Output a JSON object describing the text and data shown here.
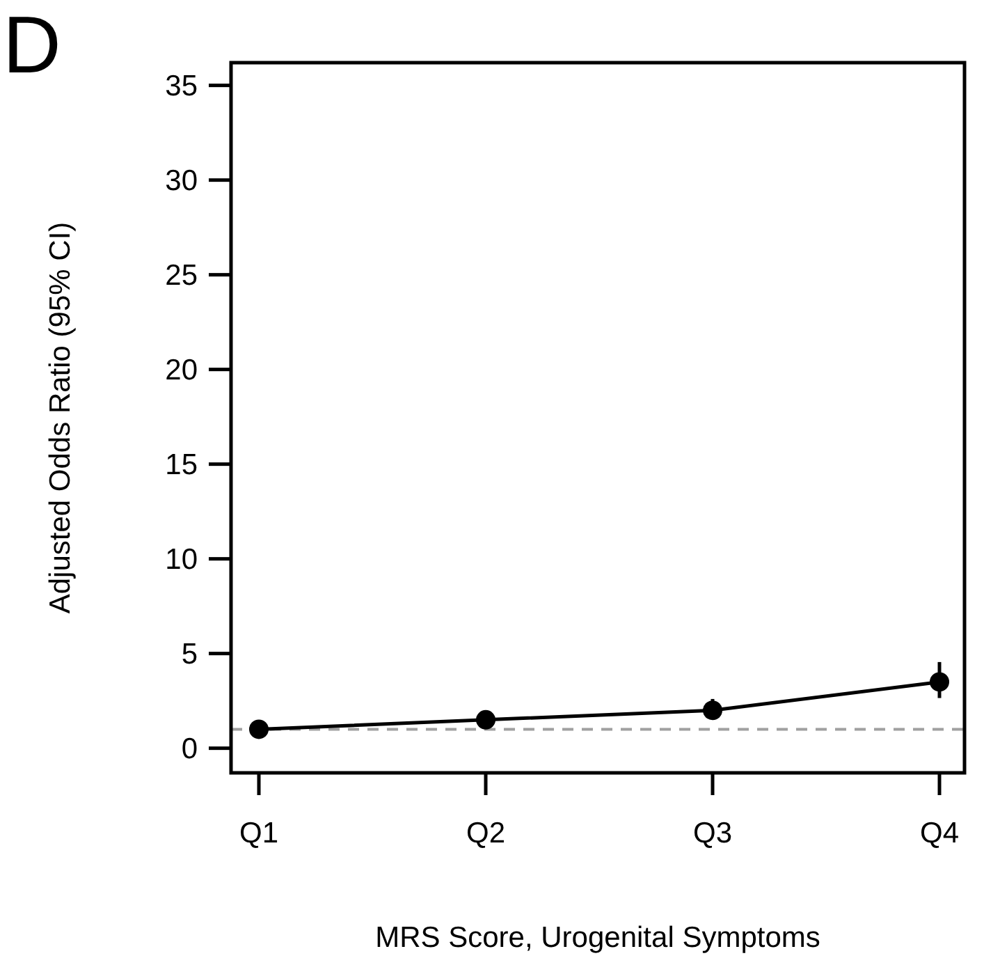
{
  "chart_data": {
    "type": "line",
    "xlabel": "MRS Score, Urogenital Symptoms",
    "ylabel": "Adjusted Odds Ratio (95% CI)",
    "annotations": [
      "D"
    ],
    "categories": [
      "Q1",
      "Q2",
      "Q3",
      "Q4"
    ],
    "series": [
      {
        "color": "#000000",
        "values": [
          1.0,
          1.5,
          2.0,
          3.5
        ],
        "errors": [
          null,
          null,
          [
            1.6,
            2.6
          ],
          [
            2.65,
            4.55
          ]
        ]
      }
    ],
    "ylim": [
      -1.3,
      36.2
    ],
    "yticks": [
      0,
      5,
      10,
      15,
      20,
      25,
      30,
      35
    ],
    "marker": "circle",
    "line_style": "solid",
    "ref_lines": [
      {
        "axis": "y",
        "value": 1,
        "color": "#a0a0a0",
        "line_style": "dashed"
      }
    ]
  }
}
